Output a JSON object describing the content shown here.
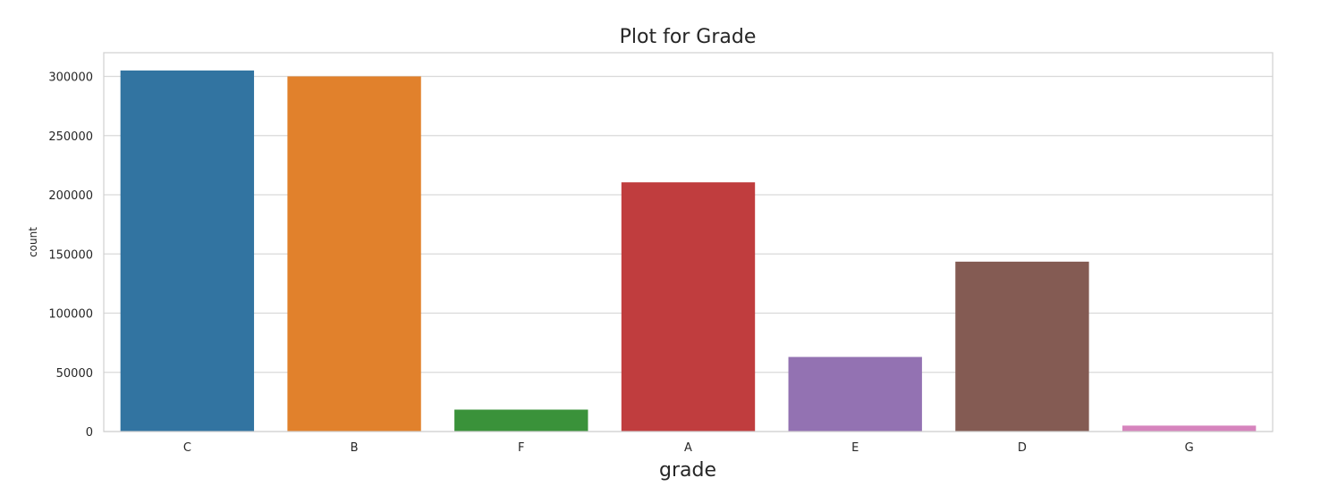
{
  "chart_data": {
    "type": "bar",
    "title": "Plot for Grade",
    "xlabel": "grade",
    "ylabel": "count",
    "categories": [
      "C",
      "B",
      "F",
      "A",
      "E",
      "D",
      "G"
    ],
    "values": [
      305000,
      300000,
      18500,
      210500,
      63000,
      143500,
      5000
    ],
    "colors": [
      "#3274a1",
      "#e1812c",
      "#3a923a",
      "#c03d3e",
      "#9372b2",
      "#845b53",
      "#d684bd"
    ],
    "yticks": [
      0,
      50000,
      100000,
      150000,
      200000,
      250000,
      300000
    ],
    "ytick_labels": [
      "0",
      "50000",
      "100000",
      "150000",
      "200000",
      "250000",
      "300000"
    ],
    "ylim": [
      0,
      320000
    ],
    "grid": true,
    "legend": "none"
  }
}
